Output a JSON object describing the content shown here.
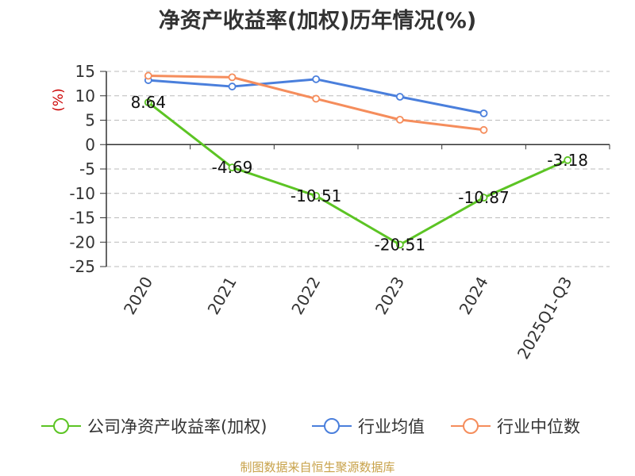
{
  "title": "净资产收益率(加权)历年情况(%)",
  "source": "制图数据来自恒生聚源数据库",
  "chart_data": {
    "type": "line",
    "ylabel": "(%)",
    "categories": [
      "2020",
      "2021",
      "2022",
      "2023",
      "2024",
      "2025Q1-Q3"
    ],
    "ylim": [
      -25,
      15
    ],
    "yticks": [
      15,
      10,
      5,
      0,
      -5,
      -10,
      -15,
      -20,
      -25
    ],
    "grid": true,
    "legend_position": "bottom",
    "series": [
      {
        "name": "公司净资产收益率(加权)",
        "color": "#5cc424",
        "values": [
          8.64,
          -4.69,
          -10.51,
          -20.51,
          -10.87,
          -3.18
        ],
        "labels": [
          "8.64",
          "-4.69",
          "-10.51",
          "-20.51",
          "-10.87",
          "-3.18"
        ]
      },
      {
        "name": "行业均值",
        "color": "#4a7fdc",
        "values": [
          13.2,
          11.9,
          13.4,
          9.8,
          6.4,
          null
        ]
      },
      {
        "name": "行业中位数",
        "color": "#f58d5c",
        "values": [
          14.1,
          13.8,
          9.4,
          5.1,
          3.0,
          null
        ]
      }
    ]
  }
}
